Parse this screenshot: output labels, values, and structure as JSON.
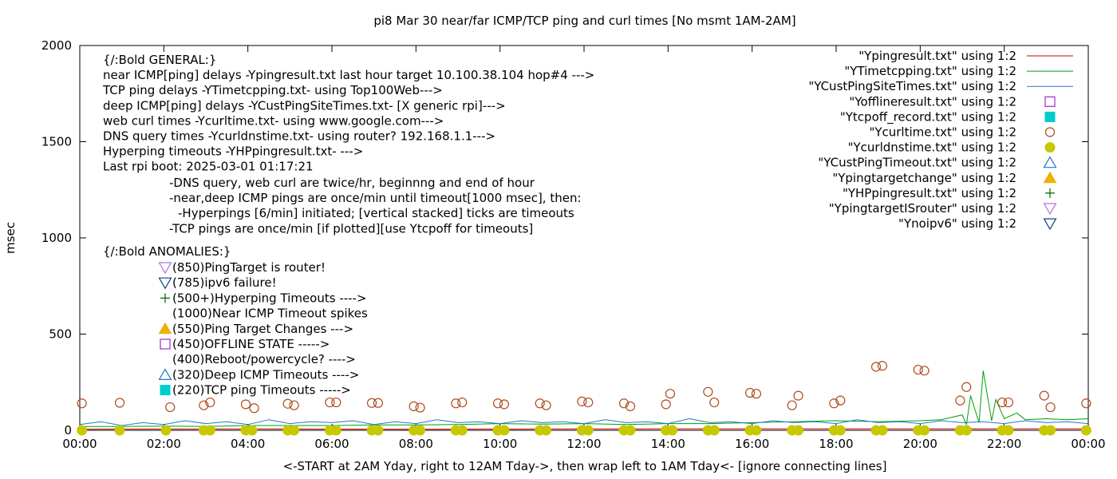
{
  "chart_data": {
    "type": "line",
    "title": "pi8 Mar 30  near/far ICMP/TCP ping and curl times [No msmt 1AM-2AM]",
    "xlabel": "<-START at 2AM Yday, right to 12AM Tday->, then wrap left to 1AM Tday<- [ignore connecting lines]",
    "ylabel": "msec",
    "xlim": [
      0,
      24
    ],
    "ylim": [
      0,
      2000
    ],
    "x_ticks": [
      0,
      2,
      4,
      6,
      8,
      10,
      12,
      14,
      16,
      18,
      20,
      22,
      24
    ],
    "x_tick_labels": [
      "00:00",
      "02:00",
      "04:00",
      "06:00",
      "08:00",
      "10:00",
      "12:00",
      "14:00",
      "16:00",
      "18:00",
      "20:00",
      "22:00",
      "00:00"
    ],
    "y_ticks": [
      0,
      500,
      1000,
      1500,
      2000
    ],
    "y_tick_labels": [
      "0",
      "500",
      "1000",
      "1500",
      "2000"
    ],
    "grid": false,
    "legend_placement": "top-right",
    "legend": [
      {
        "label": "\"Ypingresult.txt\" using 1:2",
        "marker": "line",
        "color": "#cc0000"
      },
      {
        "label": "\"YTimetcpping.txt\" using 1:2",
        "marker": "line",
        "color": "#00a000"
      },
      {
        "label": "\"YCustPingSiteTimes.txt\" using 1:2",
        "marker": "line",
        "color": "#1e78d4"
      },
      {
        "label": "\"Yofflineresult.txt\" using 1:2",
        "marker": "square-open",
        "color": "#9a2bd0"
      },
      {
        "label": "\"Ytcpoff_record.txt\" using 1:2",
        "marker": "square-filled",
        "color": "#00cccc"
      },
      {
        "label": "\"Ycurltime.txt\" using 1:2",
        "marker": "circle-open",
        "color": "#b04a1e"
      },
      {
        "label": "\"Ycurldnstime.txt\" using 1:2",
        "marker": "circle-filled",
        "color": "#c8c800"
      },
      {
        "label": "\"YCustPingTimeout.txt\" using 1:2",
        "marker": "triangle-up-open",
        "color": "#1e78d4"
      },
      {
        "label": "\"Ypingtargetchange\" using 1:2",
        "marker": "triangle-up-filled",
        "color": "#f0b000"
      },
      {
        "label": "\"YHPpingresult.txt\" using 1:2",
        "marker": "plus",
        "color": "#006400"
      },
      {
        "label": "\"YpingtargetISrouter\" using 1:2",
        "marker": "triangle-down-open",
        "color": "#b070e0"
      },
      {
        "label": "\"Ynoipv6\" using 1:2",
        "marker": "triangle-down-open",
        "color": "#104080"
      }
    ],
    "annotations": {
      "general": [
        "{/:Bold GENERAL:}",
        "near ICMP[ping] delays -Ypingresult.txt last hour target 10.100.38.104 hop#4 --->",
        "TCP ping delays -YTimetcpping.txt- using Top100Web--->",
        "deep ICMP[ping] delays -YCustPingSiteTimes.txt- [X generic rpi]--->",
        "web curl times -Ycurltime.txt- using www.google.com--->",
        "DNS query times -Ycurldnstime.txt- using router? 192.168.1.1--->",
        "Hyperping timeouts -YHPpingresult.txt- --->",
        "Last rpi boot: 2025-03-01 01:17:21"
      ],
      "notes": [
        "-DNS query, web curl are twice/hr, beginnng and end of hour",
        "-near,deep ICMP pings are once/min until timeout[1000 msec], then:",
        "-Hyperpings [6/min] initiated; [vertical stacked] ticks are timeouts",
        "-TCP pings are once/min [if plotted][use Ytcpoff for timeouts]"
      ],
      "anomalies_header": "{/:Bold ANOMALIES:}",
      "anomalies": [
        {
          "text": "(850)PingTarget is router!",
          "marker": "triangle-down-open",
          "color": "#b070e0"
        },
        {
          "text": "(785)ipv6 failure!",
          "marker": "triangle-down-open",
          "color": "#104080"
        },
        {
          "text": "(500+)Hyperping Timeouts ---->",
          "marker": "plus",
          "color": "#006400"
        },
        {
          "text": "(1000)Near ICMP Timeout spikes",
          "marker": "none",
          "color": "#000000"
        },
        {
          "text": "(550)Ping Target Changes --->",
          "marker": "triangle-up-filled",
          "color": "#f0b000"
        },
        {
          "text": "(450)OFFLINE STATE ----->",
          "marker": "square-open",
          "color": "#9a2bd0"
        },
        {
          "text": "(400)Reboot/powercycle? ---->",
          "marker": "none",
          "color": "#000000"
        },
        {
          "text": "(320)Deep ICMP Timeouts ---->",
          "marker": "triangle-up-open",
          "color": "#1e78d4"
        },
        {
          "text": "(220)TCP ping Timeouts ----->",
          "marker": "square-filled",
          "color": "#00cccc"
        }
      ]
    },
    "series": [
      {
        "file": "Ycurltime.txt",
        "style": "circle-open",
        "color": "#b04a1e",
        "x": [
          0.05,
          0.95,
          2.15,
          2.95,
          3.1,
          3.95,
          4.15,
          4.95,
          5.1,
          5.95,
          6.1,
          6.95,
          7.1,
          7.95,
          8.1,
          8.95,
          9.1,
          9.95,
          10.1,
          10.95,
          11.1,
          11.95,
          12.1,
          12.95,
          13.1,
          13.95,
          14.05,
          14.95,
          15.1,
          15.95,
          16.1,
          16.95,
          17.1,
          17.95,
          18.1,
          18.95,
          19.1,
          19.95,
          20.1,
          20.95,
          21.1,
          21.95,
          22.1,
          22.95,
          23.1,
          23.95
        ],
        "y": [
          140,
          143,
          120,
          130,
          145,
          135,
          115,
          138,
          130,
          145,
          145,
          142,
          142,
          125,
          118,
          140,
          145,
          140,
          135,
          140,
          130,
          150,
          145,
          140,
          125,
          135,
          190,
          200,
          145,
          195,
          190,
          130,
          180,
          140,
          155,
          330,
          335,
          315,
          310,
          155,
          225,
          145,
          145,
          180,
          120,
          140
        ]
      },
      {
        "file": "Ycurldnstime.txt",
        "style": "circle-filled",
        "color": "#c8c800",
        "x": [
          0.05,
          0.95,
          2.05,
          2.95,
          3.1,
          3.95,
          4.1,
          4.95,
          5.1,
          5.95,
          6.1,
          6.95,
          7.1,
          7.95,
          8.1,
          8.95,
          9.1,
          9.95,
          10.1,
          10.95,
          11.1,
          11.95,
          12.1,
          12.95,
          13.1,
          13.95,
          14.1,
          14.95,
          15.1,
          15.95,
          16.1,
          16.95,
          17.1,
          17.95,
          18.1,
          18.95,
          19.1,
          19.95,
          20.1,
          20.95,
          21.1,
          21.95,
          22.1,
          22.95,
          23.1,
          23.95
        ],
        "y": [
          0,
          0,
          0,
          0,
          0,
          0,
          0,
          0,
          0,
          0,
          0,
          0,
          0,
          0,
          0,
          0,
          0,
          0,
          0,
          0,
          0,
          0,
          0,
          0,
          0,
          0,
          0,
          0,
          0,
          0,
          0,
          0,
          0,
          0,
          0,
          0,
          0,
          0,
          0,
          0,
          0,
          0,
          0,
          0,
          0,
          0
        ]
      },
      {
        "file": "Ypingresult.txt",
        "style": "line",
        "color": "#cc0000",
        "x": [
          0,
          4,
          8,
          12,
          16,
          20,
          24
        ],
        "y": [
          6,
          7,
          6,
          7,
          8,
          8,
          8
        ]
      },
      {
        "file": "YTimetcpping.txt",
        "style": "line",
        "color": "#00a000",
        "x": [
          0,
          1,
          2,
          3,
          4,
          5,
          6,
          7,
          8,
          9,
          10,
          11,
          12,
          13,
          14,
          15,
          16,
          17,
          18,
          19,
          20,
          20.5,
          21,
          21.1,
          21.2,
          21.4,
          21.5,
          21.7,
          21.8,
          22,
          22.3,
          22.5,
          23,
          23.5,
          24
        ],
        "y": [
          20,
          20,
          22,
          20,
          25,
          25,
          25,
          28,
          28,
          30,
          35,
          32,
          35,
          30,
          35,
          35,
          40,
          45,
          50,
          45,
          50,
          55,
          80,
          30,
          180,
          40,
          310,
          50,
          160,
          60,
          90,
          55,
          60,
          55,
          60
        ]
      },
      {
        "file": "YCustPingSiteTimes.txt",
        "style": "line",
        "color": "#1e78d4",
        "x": [
          0,
          0.5,
          1,
          1.5,
          2,
          2.5,
          3,
          3.5,
          4,
          4.5,
          5,
          5.5,
          6,
          6.5,
          7,
          7.5,
          8,
          8.5,
          9,
          9.5,
          10,
          10.5,
          11,
          11.5,
          12,
          12.5,
          13,
          13.5,
          14,
          14.5,
          15,
          15.5,
          16,
          16.5,
          17,
          17.5,
          18,
          18.5,
          19,
          19.5,
          20,
          20.5,
          21,
          21.5,
          22,
          22.5,
          23,
          23.5,
          24
        ],
        "y": [
          30,
          45,
          25,
          40,
          30,
          50,
          35,
          45,
          30,
          55,
          35,
          45,
          40,
          50,
          30,
          45,
          35,
          55,
          40,
          45,
          35,
          50,
          40,
          45,
          35,
          55,
          40,
          45,
          35,
          60,
          40,
          45,
          35,
          50,
          40,
          45,
          35,
          55,
          40,
          45,
          35,
          50,
          40,
          45,
          35,
          50,
          40,
          45,
          35
        ]
      }
    ]
  }
}
